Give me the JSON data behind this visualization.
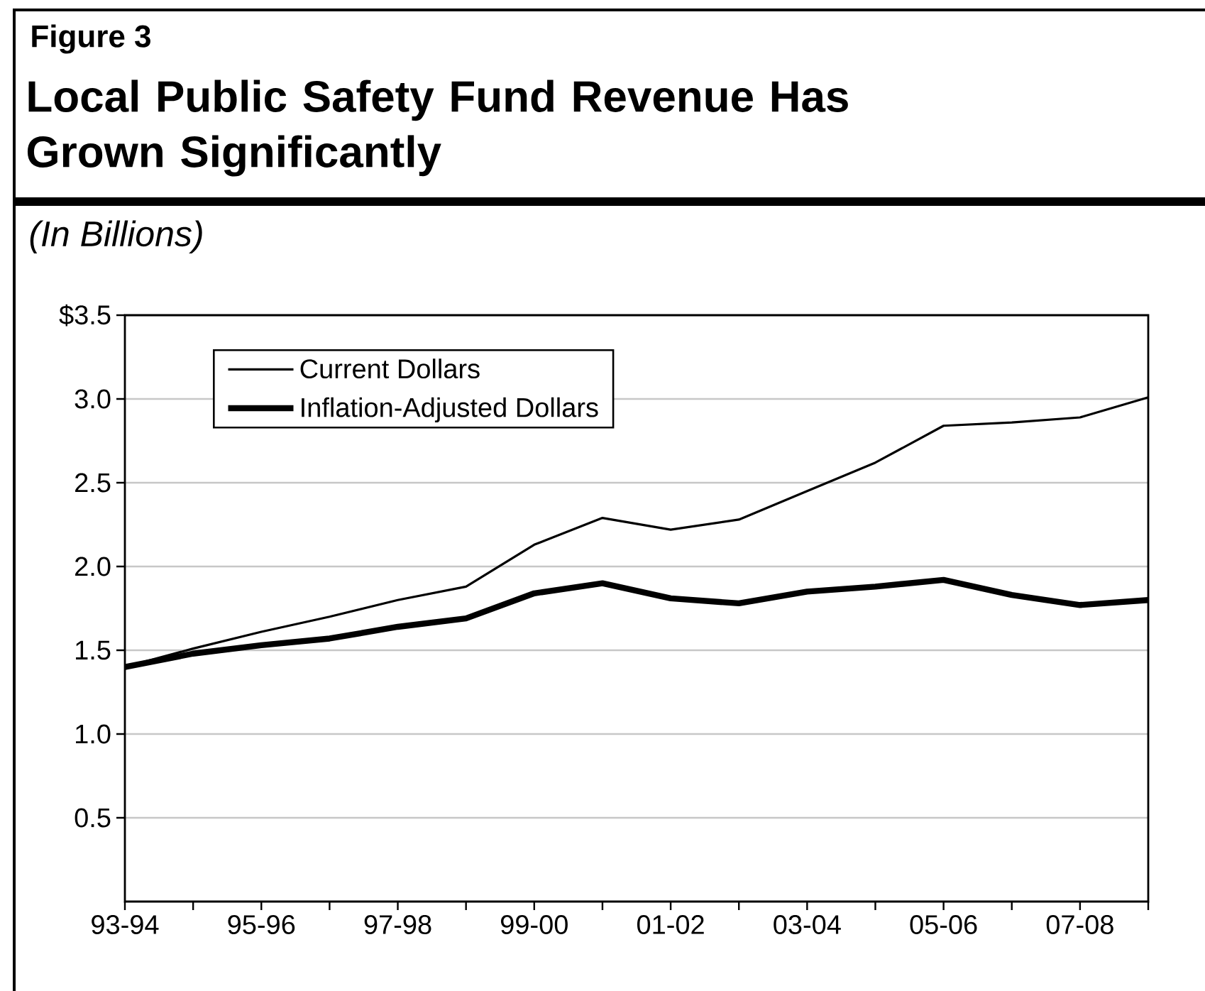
{
  "chart_data": {
    "type": "line",
    "title": "Local Public Safety Fund Revenue Has Grown Significantly",
    "subtitle": "(In Billions)",
    "annotations": [
      "Figure 3"
    ],
    "categories": [
      "93-94",
      null,
      "95-96",
      null,
      "97-98",
      null,
      "99-00",
      null,
      "01-02",
      null,
      "03-04",
      null,
      "05-06",
      null,
      "07-08",
      null
    ],
    "series": [
      {
        "name": "Current Dollars",
        "color": "#000000",
        "values": [
          1.4,
          1.51,
          1.61,
          1.7,
          1.8,
          1.88,
          2.13,
          2.29,
          2.22,
          2.28,
          2.45,
          2.62,
          2.84,
          2.86,
          2.89,
          3.01
        ]
      },
      {
        "name": "Inflation-Adjusted Dollars",
        "color": "#000000",
        "values": [
          1.4,
          1.48,
          1.53,
          1.57,
          1.64,
          1.69,
          1.84,
          1.9,
          1.81,
          1.78,
          1.85,
          1.88,
          1.92,
          1.83,
          1.77,
          1.8
        ]
      }
    ],
    "ylim": [
      0,
      3.5
    ],
    "yticks": [
      {
        "value": 0.5,
        "label": "0.5"
      },
      {
        "value": 1.0,
        "label": "1.0"
      },
      {
        "value": 1.5,
        "label": "1.5"
      },
      {
        "value": 2.0,
        "label": "2.0"
      },
      {
        "value": 2.5,
        "label": "2.5"
      },
      {
        "value": 3.0,
        "label": "3.0"
      },
      {
        "value": 3.5,
        "label": "$3.5"
      }
    ],
    "grid": "y",
    "legend": "top left",
    "line_style": "solid",
    "marker": "none"
  }
}
